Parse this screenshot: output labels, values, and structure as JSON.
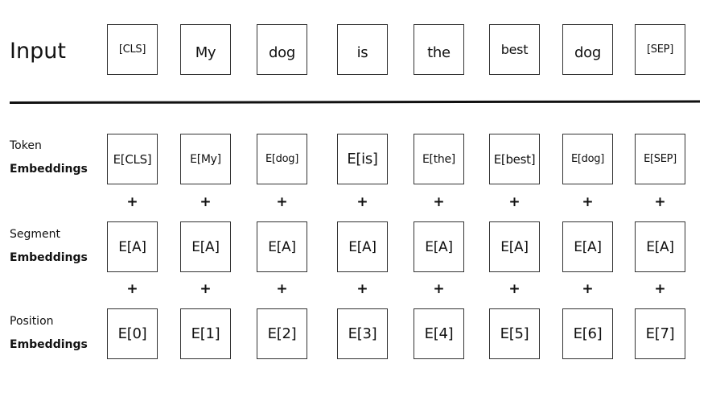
{
  "input_label": "Input",
  "inputs": [
    "[CLS]",
    "My",
    "dog",
    "is",
    "the",
    "best",
    "dog",
    "[SEP]"
  ],
  "token_label": [
    "Token",
    "Embeddings"
  ],
  "tokens": [
    "E[CLS]",
    "E[My]",
    "E[dog]",
    "E[is]",
    "E[the]",
    "E[best]",
    "E[dog]",
    "E[SEP]"
  ],
  "segment_label": [
    "Segment",
    "Embeddings"
  ],
  "segments": [
    "E[A]",
    "E[A]",
    "E[A]",
    "E[A]",
    "E[A]",
    "E[A]",
    "E[A]",
    "E[A]"
  ],
  "position_label": [
    "Position",
    "Embeddings"
  ],
  "positions": [
    "E[0]",
    "E[1]",
    "E[2]",
    "E[3]",
    "E[4]",
    "E[5]",
    "E[6]",
    "E[7]"
  ],
  "plus_symbol": "+"
}
